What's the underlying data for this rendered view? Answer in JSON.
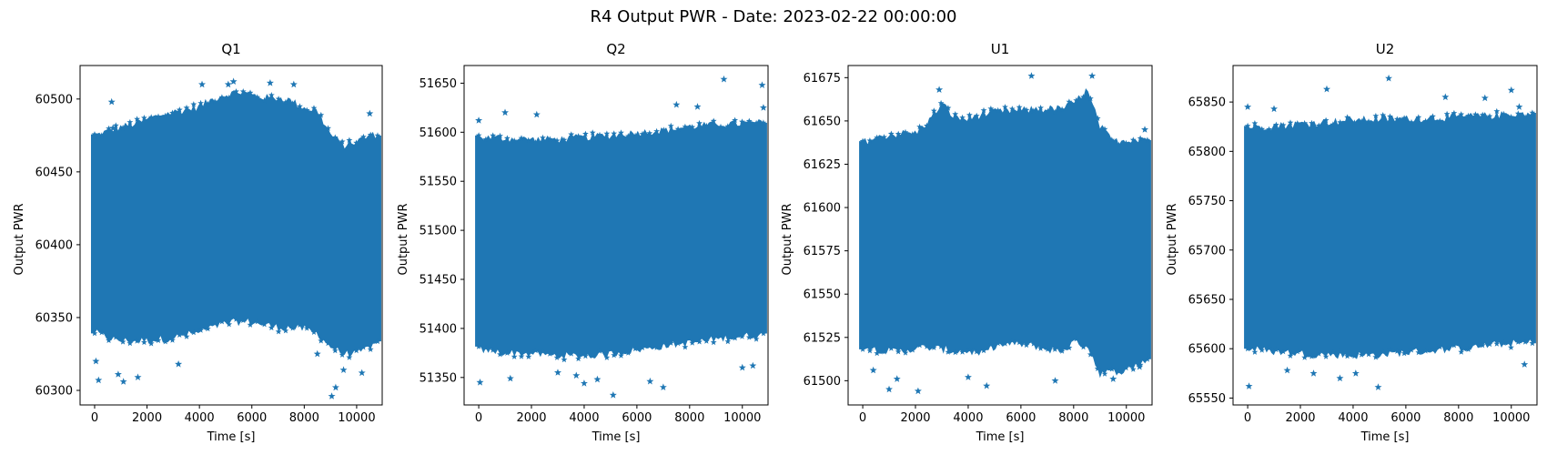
{
  "figure": {
    "suptitle": "R4 Output PWR - Date: 2023-02-22 00:00:00"
  },
  "colors": {
    "marker": "#1f77b4",
    "axes": "#000000",
    "background": "#ffffff"
  },
  "chart_data": [
    {
      "type": "scatter",
      "title": "Q1",
      "xlabel": "Time [s]",
      "ylabel": "Output PWR",
      "marker": "star",
      "grid": false,
      "xlim": [
        -555,
        10975
      ],
      "ylim": [
        60290,
        60523
      ],
      "xticks": [
        0,
        2000,
        4000,
        6000,
        8000,
        10000
      ],
      "yticks": [
        60300,
        60350,
        60400,
        60450,
        60500
      ],
      "ytick_labels": [
        "60300",
        "60350",
        "60400",
        "60450",
        "60500"
      ],
      "band": {
        "x": [
          0,
          500,
          1000,
          1500,
          2000,
          2500,
          3000,
          3500,
          4000,
          4500,
          5000,
          5500,
          6000,
          6500,
          7000,
          7500,
          8000,
          8500,
          9000,
          9500,
          10000,
          10500,
          10800
        ],
        "upper": [
          60475,
          60478,
          60481,
          60483,
          60486,
          60489,
          60491,
          60493,
          60495,
          60500,
          60503,
          60505,
          60503,
          60501,
          60501,
          60499,
          60494,
          60492,
          60476,
          60468,
          60471,
          60475,
          60476
        ],
        "lower": [
          60340,
          60336,
          60334,
          60334,
          60334,
          60335,
          60336,
          60338,
          60340,
          60343,
          60346,
          60347,
          60347,
          60345,
          60343,
          60343,
          60342,
          60339,
          60330,
          60325,
          60325,
          60330,
          60332
        ]
      },
      "outliers": [
        [
          0,
          60474
        ],
        [
          50,
          60320
        ],
        [
          150,
          60307
        ],
        [
          650,
          60498
        ],
        [
          700,
          60480
        ],
        [
          900,
          60311
        ],
        [
          1100,
          60306
        ],
        [
          1650,
          60309
        ],
        [
          3200,
          60318
        ],
        [
          4100,
          60510
        ],
        [
          5100,
          60510
        ],
        [
          5300,
          60512
        ],
        [
          6700,
          60511
        ],
        [
          7600,
          60510
        ],
        [
          8500,
          60325
        ],
        [
          9050,
          60296
        ],
        [
          9200,
          60302
        ],
        [
          9500,
          60314
        ],
        [
          10200,
          60312
        ],
        [
          10500,
          60490
        ]
      ]
    },
    {
      "type": "scatter",
      "title": "Q2",
      "xlabel": "Time [s]",
      "ylabel": "Output PWR",
      "marker": "star",
      "grid": false,
      "xlim": [
        -555,
        10975
      ],
      "ylim": [
        51322,
        51668
      ],
      "xticks": [
        0,
        2000,
        4000,
        6000,
        8000,
        10000
      ],
      "yticks": [
        51350,
        51400,
        51450,
        51500,
        51550,
        51600,
        51650
      ],
      "ytick_labels": [
        "51350",
        "51400",
        "51450",
        "51500",
        "51550",
        "51600",
        "51650"
      ],
      "band": {
        "x": [
          0,
          1000,
          2000,
          3000,
          4000,
          5000,
          6000,
          7000,
          8000,
          9000,
          10000,
          10800
        ],
        "upper": [
          51595,
          51594,
          51593,
          51593,
          51595,
          51597,
          51600,
          51602,
          51606,
          51608,
          51609,
          51610
        ],
        "lower": [
          51378,
          51375,
          51374,
          51372,
          51372,
          51374,
          51378,
          51382,
          51385,
          51389,
          51392,
          51393
        ]
      },
      "outliers": [
        [
          0,
          51612
        ],
        [
          50,
          51345
        ],
        [
          1000,
          51620
        ],
        [
          1200,
          51349
        ],
        [
          2200,
          51618
        ],
        [
          3000,
          51355
        ],
        [
          3700,
          51352
        ],
        [
          4000,
          51344
        ],
        [
          4500,
          51348
        ],
        [
          5100,
          51332
        ],
        [
          6500,
          51346
        ],
        [
          7000,
          51340
        ],
        [
          7500,
          51628
        ],
        [
          8300,
          51626
        ],
        [
          9300,
          51654
        ],
        [
          10000,
          51360
        ],
        [
          10400,
          51362
        ],
        [
          10750,
          51648
        ],
        [
          10800,
          51625
        ]
      ]
    },
    {
      "type": "scatter",
      "title": "U1",
      "xlabel": "Time [s]",
      "ylabel": "Output PWR",
      "marker": "star",
      "grid": false,
      "xlim": [
        -555,
        10975
      ],
      "ylim": [
        61486,
        61682
      ],
      "xticks": [
        0,
        2000,
        4000,
        6000,
        8000,
        10000
      ],
      "yticks": [
        61500,
        61525,
        61550,
        61575,
        61600,
        61625,
        61650,
        61675
      ],
      "ytick_labels": [
        "61500",
        "61525",
        "61550",
        "61575",
        "61600",
        "61625",
        "61650",
        "61675"
      ],
      "band": {
        "x": [
          0,
          500,
          1000,
          1500,
          2000,
          2500,
          3000,
          3500,
          4000,
          4500,
          5000,
          5500,
          6000,
          6500,
          7000,
          7500,
          8000,
          8500,
          9000,
          9500,
          10000,
          10500,
          10800
        ],
        "upper": [
          61638,
          61640,
          61642,
          61643,
          61643,
          61650,
          61660,
          61652,
          61651,
          61654,
          61655,
          61656,
          61656,
          61657,
          61657,
          61657,
          61660,
          61668,
          61647,
          61638,
          61639,
          61640,
          61640
        ],
        "lower": [
          61520,
          61518,
          61517,
          61517,
          61519,
          61519,
          61518,
          61517,
          61517,
          61515,
          61520,
          61521,
          61521,
          61520,
          61518,
          61517,
          61522,
          61521,
          61504,
          61505,
          61506,
          61510,
          61512
        ]
      },
      "outliers": [
        [
          0,
          61520
        ],
        [
          400,
          61506
        ],
        [
          1000,
          61495
        ],
        [
          1300,
          61501
        ],
        [
          2100,
          61494
        ],
        [
          2900,
          61668
        ],
        [
          4000,
          61502
        ],
        [
          4700,
          61497
        ],
        [
          6400,
          61676
        ],
        [
          7300,
          61500
        ],
        [
          8700,
          61676
        ],
        [
          9500,
          61501
        ],
        [
          10500,
          61508
        ],
        [
          10700,
          61645
        ]
      ]
    },
    {
      "type": "scatter",
      "title": "U2",
      "xlabel": "Time [s]",
      "ylabel": "Output PWR",
      "marker": "star",
      "grid": false,
      "xlim": [
        -555,
        10975
      ],
      "ylim": [
        65543,
        65887
      ],
      "xticks": [
        0,
        2000,
        4000,
        6000,
        8000,
        10000
      ],
      "yticks": [
        65550,
        65600,
        65650,
        65700,
        65750,
        65800,
        65850
      ],
      "ytick_labels": [
        "65550",
        "65600",
        "65650",
        "65700",
        "65750",
        "65800",
        "65850"
      ],
      "band": {
        "x": [
          0,
          1000,
          2000,
          3000,
          4000,
          5000,
          6000,
          7000,
          8000,
          9000,
          10000,
          10800
        ],
        "upper": [
          65825,
          65826,
          65828,
          65830,
          65832,
          65833,
          65833,
          65834,
          65835,
          65836,
          65838,
          65838
        ],
        "lower": [
          65600,
          65597,
          65595,
          65594,
          65593,
          65594,
          65596,
          65598,
          65600,
          65603,
          65605,
          65606
        ]
      },
      "outliers": [
        [
          0,
          65845
        ],
        [
          50,
          65562
        ],
        [
          1000,
          65843
        ],
        [
          1500,
          65578
        ],
        [
          2500,
          65575
        ],
        [
          3000,
          65863
        ],
        [
          3500,
          65570
        ],
        [
          4100,
          65575
        ],
        [
          4950,
          65561
        ],
        [
          5350,
          65874
        ],
        [
          7500,
          65855
        ],
        [
          9000,
          65854
        ],
        [
          10000,
          65862
        ],
        [
          10300,
          65845
        ],
        [
          10500,
          65584
        ]
      ]
    }
  ]
}
